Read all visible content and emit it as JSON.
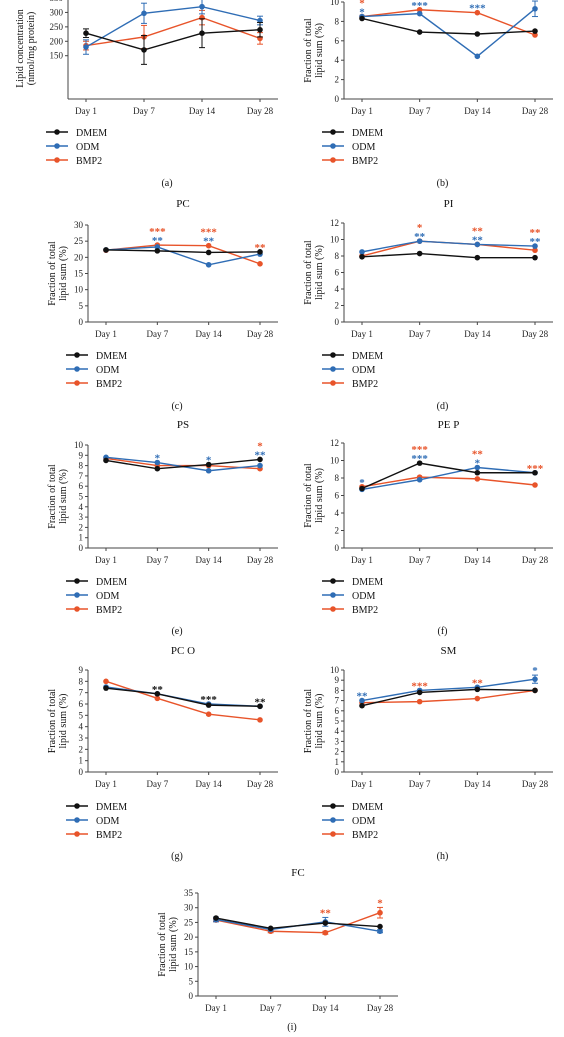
{
  "series_legend": [
    "DMEM",
    "ODM",
    "BMP2"
  ],
  "colors": {
    "DMEM": "#111111",
    "ODM": "#2f6db5",
    "BMP2": "#e8542a",
    "axis": "#444444"
  },
  "chart_data": [
    {
      "type": "line",
      "panel_label": "(a)",
      "title": "",
      "xlabel": "",
      "ylabel": "Lipid concentration (nmol/mg protein)",
      "categories": [
        "Day 1",
        "Day 7",
        "Day 14",
        "Day 28"
      ],
      "ylim": [
        0,
        350
      ],
      "yticks": [
        150,
        200,
        250,
        300,
        350
      ],
      "series": [
        {
          "name": "DMEM",
          "values": [
            228,
            170,
            228,
            240
          ],
          "errors": [
            15,
            50,
            50,
            25
          ]
        },
        {
          "name": "ODM",
          "values": [
            180,
            297,
            320,
            272
          ],
          "errors": [
            25,
            35,
            25,
            15
          ]
        },
        {
          "name": "BMP2",
          "values": [
            185,
            215,
            282,
            210
          ],
          "errors": [
            15,
            40,
            25,
            20
          ]
        }
      ],
      "annotations": [
        {
          "series": "ODM",
          "index": 1,
          "text": "*"
        }
      ]
    },
    {
      "type": "line",
      "panel_label": "(b)",
      "title": "",
      "xlabel": "",
      "ylabel": "Fraction of total lipid sum (%)",
      "categories": [
        "Day 1",
        "Day 7",
        "Day 14",
        "Day 28"
      ],
      "ylim": [
        0,
        10
      ],
      "yticks": [
        0,
        2,
        4,
        6,
        8,
        10
      ],
      "series": [
        {
          "name": "DMEM",
          "values": [
            8.3,
            6.9,
            6.7,
            7.0
          ]
        },
        {
          "name": "ODM",
          "values": [
            8.5,
            8.8,
            4.4,
            9.3
          ],
          "errors": [
            0,
            0,
            0,
            0.8
          ]
        },
        {
          "name": "BMP2",
          "values": [
            8.5,
            9.2,
            8.9,
            6.6
          ]
        }
      ],
      "annotations": [
        {
          "series": "ODM",
          "index": 0,
          "text": "*"
        },
        {
          "series": "BMP2",
          "index": 0,
          "text": "*"
        },
        {
          "series": "ODM",
          "index": 1,
          "text": "***"
        },
        {
          "series": "BMP2",
          "index": 1,
          "text": "***"
        },
        {
          "series": "ODM",
          "index": 2,
          "text": "***"
        },
        {
          "series": "BMP2",
          "index": 2,
          "text": "***"
        },
        {
          "series": "ODM",
          "index": 3,
          "text": "*"
        }
      ]
    },
    {
      "type": "line",
      "panel_label": "(c)",
      "title": "PC",
      "xlabel": "",
      "ylabel": "Fraction of total lipid sum (%)",
      "categories": [
        "Day 1",
        "Day 7",
        "Day 14",
        "Day 28"
      ],
      "ylim": [
        0,
        30
      ],
      "yticks": [
        0,
        5,
        10,
        15,
        20,
        25,
        30
      ],
      "series": [
        {
          "name": "DMEM",
          "values": [
            22.3,
            22.0,
            21.5,
            21.7
          ]
        },
        {
          "name": "ODM",
          "values": [
            22.3,
            23.2,
            17.7,
            21.0
          ]
        },
        {
          "name": "BMP2",
          "values": [
            22.2,
            23.8,
            23.6,
            18.0
          ]
        }
      ],
      "annotations": [
        {
          "series": "ODM",
          "index": 1,
          "text": "**"
        },
        {
          "series": "BMP2",
          "index": 1,
          "text": "***"
        },
        {
          "series": "ODM",
          "index": 2,
          "text": "**"
        },
        {
          "series": "BMP2",
          "index": 2,
          "text": "***"
        },
        {
          "series": "BMP2",
          "index": 3,
          "text": "**"
        }
      ]
    },
    {
      "type": "line",
      "panel_label": "(d)",
      "title": "PI",
      "xlabel": "",
      "ylabel": "Fraction of total lipid sum (%)",
      "categories": [
        "Day 1",
        "Day 7",
        "Day 14",
        "Day 28"
      ],
      "ylim": [
        0,
        12
      ],
      "yticks": [
        0,
        2,
        4,
        6,
        8,
        10,
        12
      ],
      "series": [
        {
          "name": "DMEM",
          "values": [
            7.9,
            8.3,
            7.8,
            7.8
          ]
        },
        {
          "name": "ODM",
          "values": [
            8.5,
            9.8,
            9.4,
            9.2
          ]
        },
        {
          "name": "BMP2",
          "values": [
            8.0,
            9.8,
            9.4,
            8.7
          ]
        }
      ],
      "annotations": [
        {
          "series": "ODM",
          "index": 1,
          "text": "**"
        },
        {
          "series": "BMP2",
          "index": 1,
          "text": "*"
        },
        {
          "series": "ODM",
          "index": 2,
          "text": "**"
        },
        {
          "series": "BMP2",
          "index": 2,
          "text": "**"
        },
        {
          "series": "ODM",
          "index": 3,
          "text": "**"
        },
        {
          "series": "BMP2",
          "index": 3,
          "text": "**"
        }
      ]
    },
    {
      "type": "line",
      "panel_label": "(e)",
      "title": "PS",
      "xlabel": "",
      "ylabel": "Fraction of total lipid sum (%)",
      "categories": [
        "Day 1",
        "Day 7",
        "Day 14",
        "Day 28"
      ],
      "ylim": [
        0,
        10
      ],
      "yticks": [
        0,
        1,
        2,
        3,
        4,
        5,
        6,
        7,
        8,
        9,
        10
      ],
      "series": [
        {
          "name": "DMEM",
          "values": [
            8.5,
            7.7,
            8.1,
            8.6
          ]
        },
        {
          "name": "ODM",
          "values": [
            8.8,
            8.3,
            7.5,
            8.0
          ]
        },
        {
          "name": "BMP2",
          "values": [
            8.7,
            8.0,
            8.0,
            7.7
          ]
        }
      ],
      "annotations": [
        {
          "series": "ODM",
          "index": 1,
          "text": "*"
        },
        {
          "series": "ODM",
          "index": 2,
          "text": "*"
        },
        {
          "series": "ODM",
          "index": 3,
          "text": "**"
        },
        {
          "series": "BMP2",
          "index": 3,
          "text": "*"
        }
      ]
    },
    {
      "type": "line",
      "panel_label": "(f)",
      "title": "PE P",
      "xlabel": "",
      "ylabel": "Fraction of total lipid sum (%)",
      "categories": [
        "Day 1",
        "Day 7",
        "Day 14",
        "Day 28"
      ],
      "ylim": [
        0,
        12
      ],
      "yticks": [
        0,
        2,
        4,
        6,
        8,
        10,
        12
      ],
      "series": [
        {
          "name": "DMEM",
          "values": [
            6.8,
            9.7,
            8.6,
            8.6
          ]
        },
        {
          "name": "ODM",
          "values": [
            6.7,
            7.8,
            9.2,
            8.6
          ]
        },
        {
          "name": "BMP2",
          "values": [
            7.0,
            8.1,
            7.9,
            7.2
          ]
        }
      ],
      "annotations": [
        {
          "series": "ODM",
          "index": 0,
          "text": "*"
        },
        {
          "series": "ODM",
          "index": 1,
          "text": "***"
        },
        {
          "series": "BMP2",
          "index": 1,
          "text": "***"
        },
        {
          "series": "ODM",
          "index": 2,
          "text": "*"
        },
        {
          "series": "BMP2",
          "index": 2,
          "text": "**"
        },
        {
          "series": "BMP2",
          "index": 3,
          "text": "***"
        }
      ]
    },
    {
      "type": "line",
      "panel_label": "(g)",
      "title": "PC O",
      "xlabel": "",
      "ylabel": "Fraction of total lipid sum (%)",
      "categories": [
        "Day 1",
        "Day 7",
        "Day 14",
        "Day 28"
      ],
      "ylim": [
        0,
        9
      ],
      "yticks": [
        0,
        1,
        2,
        3,
        4,
        5,
        6,
        7,
        8,
        9
      ],
      "series": [
        {
          "name": "DMEM",
          "values": [
            7.4,
            6.9,
            5.9,
            5.8
          ]
        },
        {
          "name": "ODM",
          "values": [
            7.5,
            6.9,
            6.0,
            5.8
          ]
        },
        {
          "name": "BMP2",
          "values": [
            8.0,
            6.5,
            5.1,
            4.6
          ]
        }
      ],
      "annotations": [
        {
          "series": "DMEM",
          "index": 1,
          "text": "**"
        },
        {
          "series": "DMEM",
          "index": 2,
          "text": "***"
        },
        {
          "series": "DMEM",
          "index": 3,
          "text": "**"
        }
      ]
    },
    {
      "type": "line",
      "panel_label": "(h)",
      "title": "SM",
      "xlabel": "",
      "ylabel": "Fraction of total lipid sum (%)",
      "categories": [
        "Day 1",
        "Day 7",
        "Day 14",
        "Day 28"
      ],
      "ylim": [
        0,
        10
      ],
      "yticks": [
        0,
        1,
        2,
        3,
        4,
        5,
        6,
        7,
        8,
        9,
        10
      ],
      "series": [
        {
          "name": "DMEM",
          "values": [
            6.5,
            7.8,
            8.1,
            8.0
          ]
        },
        {
          "name": "ODM",
          "values": [
            7.0,
            8.0,
            8.3,
            9.1
          ],
          "errors": [
            0,
            0,
            0,
            0.4
          ]
        },
        {
          "name": "BMP2",
          "values": [
            6.8,
            6.9,
            7.2,
            8.0
          ]
        }
      ],
      "annotations": [
        {
          "series": "ODM",
          "index": 0,
          "text": "**"
        },
        {
          "series": "BMP2",
          "index": 1,
          "text": "***"
        },
        {
          "series": "BMP2",
          "index": 2,
          "text": "**"
        },
        {
          "series": "ODM",
          "index": 3,
          "text": "*"
        }
      ]
    },
    {
      "type": "line",
      "panel_label": "(i)",
      "title": "FC",
      "xlabel": "",
      "ylabel": "Fraction of total lipid sum (%)",
      "categories": [
        "Day 1",
        "Day 7",
        "Day 14",
        "Day 28"
      ],
      "ylim": [
        0,
        35
      ],
      "yticks": [
        0,
        5,
        10,
        15,
        20,
        25,
        30,
        35
      ],
      "series": [
        {
          "name": "DMEM",
          "values": [
            26.5,
            23.0,
            24.8,
            23.6
          ]
        },
        {
          "name": "ODM",
          "values": [
            26.0,
            22.6,
            25.2,
            22.0
          ],
          "errors": [
            0.8,
            0.5,
            1.5,
            0.5
          ]
        },
        {
          "name": "BMP2",
          "values": [
            25.8,
            22.0,
            21.5,
            28.3
          ],
          "errors": [
            0.5,
            0.5,
            0.5,
            1.8
          ]
        }
      ],
      "annotations": [
        {
          "series": "BMP2",
          "index": 2,
          "text": "**"
        },
        {
          "series": "BMP2",
          "index": 3,
          "text": "*"
        }
      ]
    }
  ]
}
